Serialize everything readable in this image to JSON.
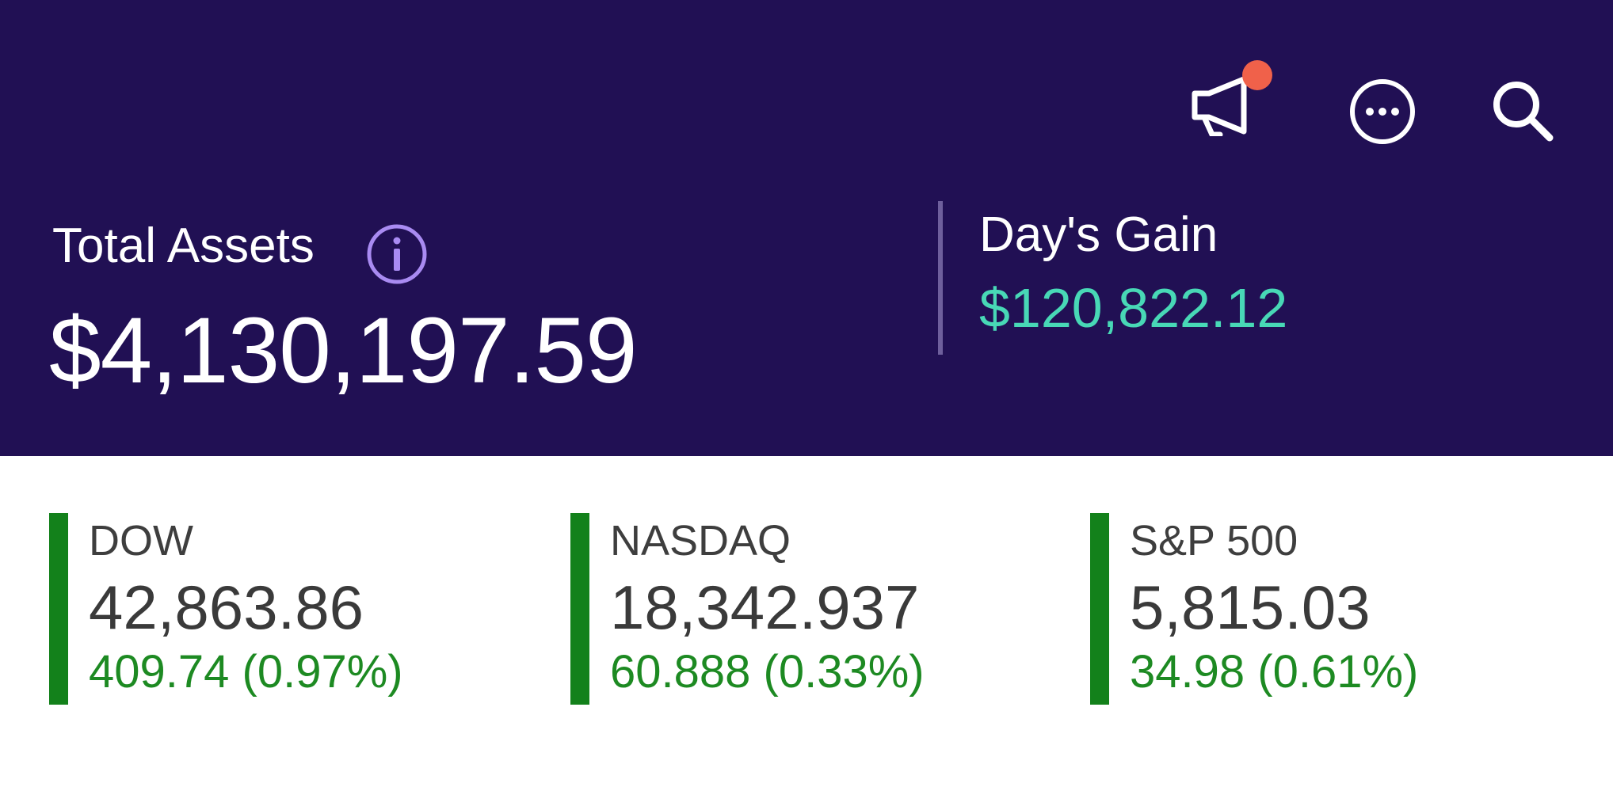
{
  "header": {
    "total_assets_label": "Total Assets",
    "total_assets_value": "$4,130,197.59",
    "days_gain_label": "Day's Gain",
    "days_gain_value": "$120,822.12",
    "icons": [
      "megaphone-icon",
      "more-icon",
      "search-icon",
      "info-icon"
    ]
  },
  "tickers": [
    {
      "name": "DOW",
      "value": "42,863.86",
      "change": "409.74 (0.97%)"
    },
    {
      "name": "NASDAQ",
      "value": "18,342.937",
      "change": "60.888 (0.33%)"
    },
    {
      "name": "S&P 500",
      "value": "5,815.03",
      "change": "34.98 (0.61%)"
    }
  ],
  "colors": {
    "header_bg": "#211054",
    "gain": "#48d8b6",
    "positive": "#1d8a22",
    "notification": "#f0614a",
    "info_accent": "#a98bf2"
  }
}
